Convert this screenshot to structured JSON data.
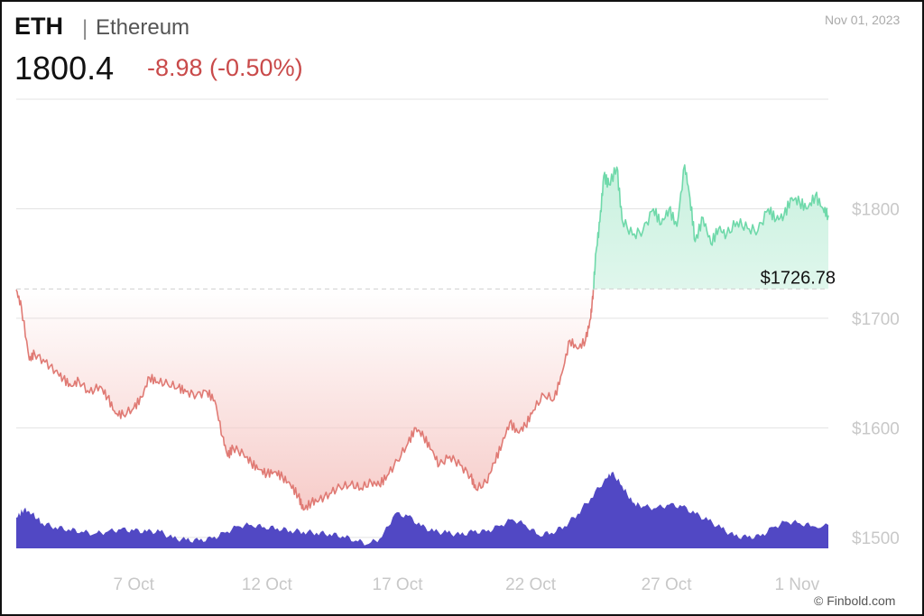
{
  "header": {
    "symbol": "ETH",
    "separator": "|",
    "name": "Ethereum",
    "price": "1800.4",
    "change": "-8.98 (-0.50%)",
    "date": "Nov 01, 2023"
  },
  "watermark": "© Finbold.com",
  "colors": {
    "down_line": "#e07a74",
    "down_fill": "#f6c9c6",
    "up_line": "#6fd9aa",
    "up_fill": "#c6f0dd",
    "volume": "#5148c4",
    "grid": "#e3e3e3",
    "change_text": "#c94a4a"
  },
  "chart_data": {
    "type": "line",
    "series": [
      {
        "values": [
          [
            0,
            1726
          ],
          [
            0.2,
            1710
          ],
          [
            0.5,
            1662
          ],
          [
            0.7,
            1668
          ],
          [
            1.1,
            1660
          ],
          [
            1.5,
            1652
          ],
          [
            1.8,
            1645
          ],
          [
            2.1,
            1638
          ],
          [
            2.4,
            1643
          ],
          [
            2.8,
            1632
          ],
          [
            3.2,
            1638
          ],
          [
            3.5,
            1628
          ],
          [
            3.8,
            1613
          ],
          [
            4.1,
            1612
          ],
          [
            4.5,
            1618
          ],
          [
            4.8,
            1628
          ],
          [
            5.1,
            1646
          ],
          [
            5.4,
            1642
          ],
          [
            5.8,
            1640
          ],
          [
            6.2,
            1637
          ],
          [
            6.5,
            1633
          ],
          [
            6.9,
            1630
          ],
          [
            7.3,
            1633
          ],
          [
            7.6,
            1625
          ],
          [
            7.9,
            1592
          ],
          [
            8.1,
            1574
          ],
          [
            8.3,
            1582
          ],
          [
            8.7,
            1576
          ],
          [
            9.0,
            1568
          ],
          [
            9.3,
            1562
          ],
          [
            9.6,
            1558
          ],
          [
            9.9,
            1560
          ],
          [
            10.2,
            1555
          ],
          [
            10.5,
            1548
          ],
          [
            10.8,
            1538
          ],
          [
            11.0,
            1525
          ],
          [
            11.3,
            1532
          ],
          [
            11.6,
            1534
          ],
          [
            12.0,
            1540
          ],
          [
            12.4,
            1546
          ],
          [
            12.8,
            1548
          ],
          [
            13.2,
            1545
          ],
          [
            13.6,
            1550
          ],
          [
            13.9,
            1548
          ],
          [
            14.2,
            1556
          ],
          [
            14.6,
            1570
          ],
          [
            15.0,
            1586
          ],
          [
            15.3,
            1600
          ],
          [
            15.6,
            1592
          ],
          [
            15.9,
            1580
          ],
          [
            16.2,
            1566
          ],
          [
            16.6,
            1574
          ],
          [
            17.0,
            1566
          ],
          [
            17.4,
            1556
          ],
          [
            17.6,
            1544
          ],
          [
            18.0,
            1550
          ],
          [
            18.3,
            1568
          ],
          [
            18.6,
            1585
          ],
          [
            18.9,
            1605
          ],
          [
            19.2,
            1596
          ],
          [
            19.5,
            1602
          ],
          [
            19.8,
            1616
          ],
          [
            20.2,
            1630
          ],
          [
            20.6,
            1626
          ],
          [
            20.9,
            1650
          ],
          [
            21.2,
            1680
          ],
          [
            21.5,
            1672
          ],
          [
            21.8,
            1680
          ],
          [
            22.0,
            1700
          ],
          [
            22.1,
            1726
          ]
        ]
      },
      {
        "values": [
          [
            22.1,
            1726
          ],
          [
            22.2,
            1760
          ],
          [
            22.35,
            1788
          ],
          [
            22.5,
            1830
          ],
          [
            22.7,
            1822
          ],
          [
            23.0,
            1838
          ],
          [
            23.2,
            1790
          ],
          [
            23.6,
            1776
          ],
          [
            24.0,
            1780
          ],
          [
            24.4,
            1800
          ],
          [
            24.7,
            1786
          ],
          [
            25.0,
            1800
          ],
          [
            25.3,
            1784
          ],
          [
            25.6,
            1840
          ],
          [
            25.8,
            1810
          ],
          [
            26.0,
            1770
          ],
          [
            26.3,
            1792
          ],
          [
            26.6,
            1768
          ],
          [
            26.9,
            1782
          ],
          [
            27.2,
            1776
          ],
          [
            27.6,
            1788
          ],
          [
            28.0,
            1782
          ],
          [
            28.4,
            1780
          ],
          [
            28.8,
            1800
          ],
          [
            29.1,
            1790
          ],
          [
            29.4,
            1794
          ],
          [
            29.7,
            1810
          ],
          [
            30.0,
            1806
          ],
          [
            30.3,
            1800
          ],
          [
            30.6,
            1812
          ],
          [
            30.9,
            1800
          ],
          [
            31.1,
            1794
          ]
        ]
      }
    ],
    "reference_value": 1726.78,
    "reference_label": "$1726.78",
    "ylim": [
      1490,
      1900
    ],
    "yticks": [
      1500,
      1600,
      1700,
      1800
    ],
    "ytick_labels": [
      "$1500",
      "$1600",
      "$1700",
      "$1800"
    ],
    "xlim": [
      0,
      31.1
    ],
    "xticks": [
      {
        "pos": 4.5,
        "label": "7 Oct"
      },
      {
        "pos": 9.6,
        "label": "12 Oct"
      },
      {
        "pos": 14.6,
        "label": "17 Oct"
      },
      {
        "pos": 19.7,
        "label": "22 Oct"
      },
      {
        "pos": 24.9,
        "label": "27 Oct"
      },
      {
        "pos": 29.9,
        "label": "1 Nov"
      }
    ],
    "volume": [
      [
        0,
        0.55
      ],
      [
        0.3,
        0.7
      ],
      [
        0.6,
        0.62
      ],
      [
        1.0,
        0.45
      ],
      [
        1.5,
        0.38
      ],
      [
        2,
        0.34
      ],
      [
        2.5,
        0.3
      ],
      [
        3,
        0.26
      ],
      [
        3.5,
        0.3
      ],
      [
        4,
        0.34
      ],
      [
        4.5,
        0.32
      ],
      [
        5,
        0.3
      ],
      [
        5.5,
        0.3
      ],
      [
        6,
        0.18
      ],
      [
        6.5,
        0.15
      ],
      [
        7,
        0.14
      ],
      [
        7.5,
        0.18
      ],
      [
        8,
        0.28
      ],
      [
        8.5,
        0.4
      ],
      [
        9,
        0.42
      ],
      [
        9.5,
        0.38
      ],
      [
        10,
        0.36
      ],
      [
        10.5,
        0.32
      ],
      [
        11,
        0.3
      ],
      [
        11.5,
        0.28
      ],
      [
        12,
        0.26
      ],
      [
        12.5,
        0.22
      ],
      [
        13,
        0.14
      ],
      [
        13.5,
        0.08
      ],
      [
        14,
        0.2
      ],
      [
        14.5,
        0.62
      ],
      [
        15,
        0.58
      ],
      [
        15.5,
        0.4
      ],
      [
        16,
        0.3
      ],
      [
        16.5,
        0.28
      ],
      [
        17,
        0.24
      ],
      [
        17.5,
        0.3
      ],
      [
        18,
        0.3
      ],
      [
        18.5,
        0.4
      ],
      [
        19,
        0.52
      ],
      [
        19.5,
        0.42
      ],
      [
        20,
        0.24
      ],
      [
        20.5,
        0.28
      ],
      [
        21,
        0.4
      ],
      [
        21.5,
        0.62
      ],
      [
        22,
        0.9
      ],
      [
        22.5,
        1.2
      ],
      [
        22.8,
        1.36
      ],
      [
        23.2,
        1.12
      ],
      [
        23.6,
        0.82
      ],
      [
        24,
        0.75
      ],
      [
        24.5,
        0.72
      ],
      [
        25,
        0.78
      ],
      [
        25.5,
        0.75
      ],
      [
        26,
        0.62
      ],
      [
        26.5,
        0.5
      ],
      [
        27,
        0.36
      ],
      [
        27.5,
        0.22
      ],
      [
        28,
        0.2
      ],
      [
        28.5,
        0.22
      ],
      [
        29,
        0.38
      ],
      [
        29.5,
        0.48
      ],
      [
        30,
        0.45
      ],
      [
        30.5,
        0.4
      ],
      [
        31.1,
        0.42
      ]
    ]
  }
}
